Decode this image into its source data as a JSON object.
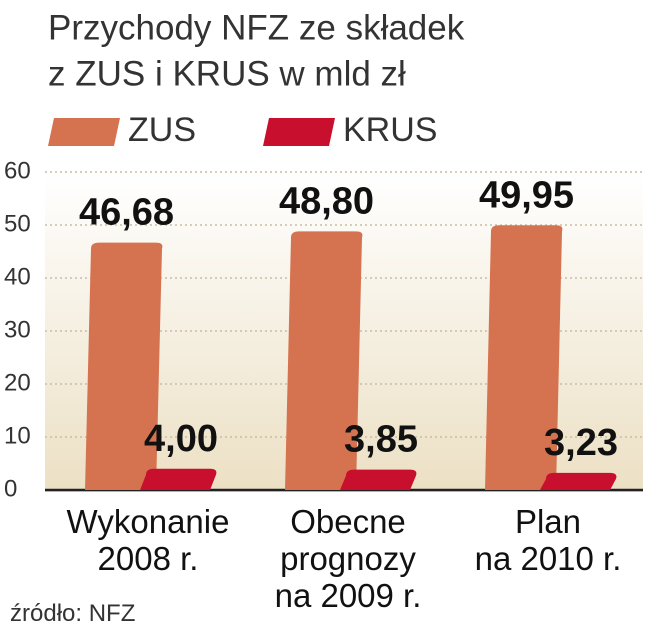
{
  "chart_data": {
    "type": "bar",
    "title": "Przychody NFZ ze składek",
    "subtitle": "z ZUS i KRUS w mld zł",
    "categories": [
      "Wykonanie\n2008 r.",
      "Obecne\nprognozy\nna 2009 r.",
      "Plan\nna 2010 r."
    ],
    "series": [
      {
        "name": "ZUS",
        "color": "#d5724f",
        "values": [
          46.68,
          48.8,
          49.95
        ],
        "value_labels": [
          "46,68",
          "48,80",
          "49,95"
        ]
      },
      {
        "name": "KRUS",
        "color": "#c8102e",
        "values": [
          4.0,
          3.85,
          3.23
        ],
        "value_labels": [
          "4,00",
          "3,85",
          "3,23"
        ]
      }
    ],
    "ylim": [
      0,
      60
    ],
    "yticks": [
      0,
      10,
      20,
      30,
      40,
      50,
      60
    ],
    "grid": true,
    "source": "źródło: NFZ"
  }
}
